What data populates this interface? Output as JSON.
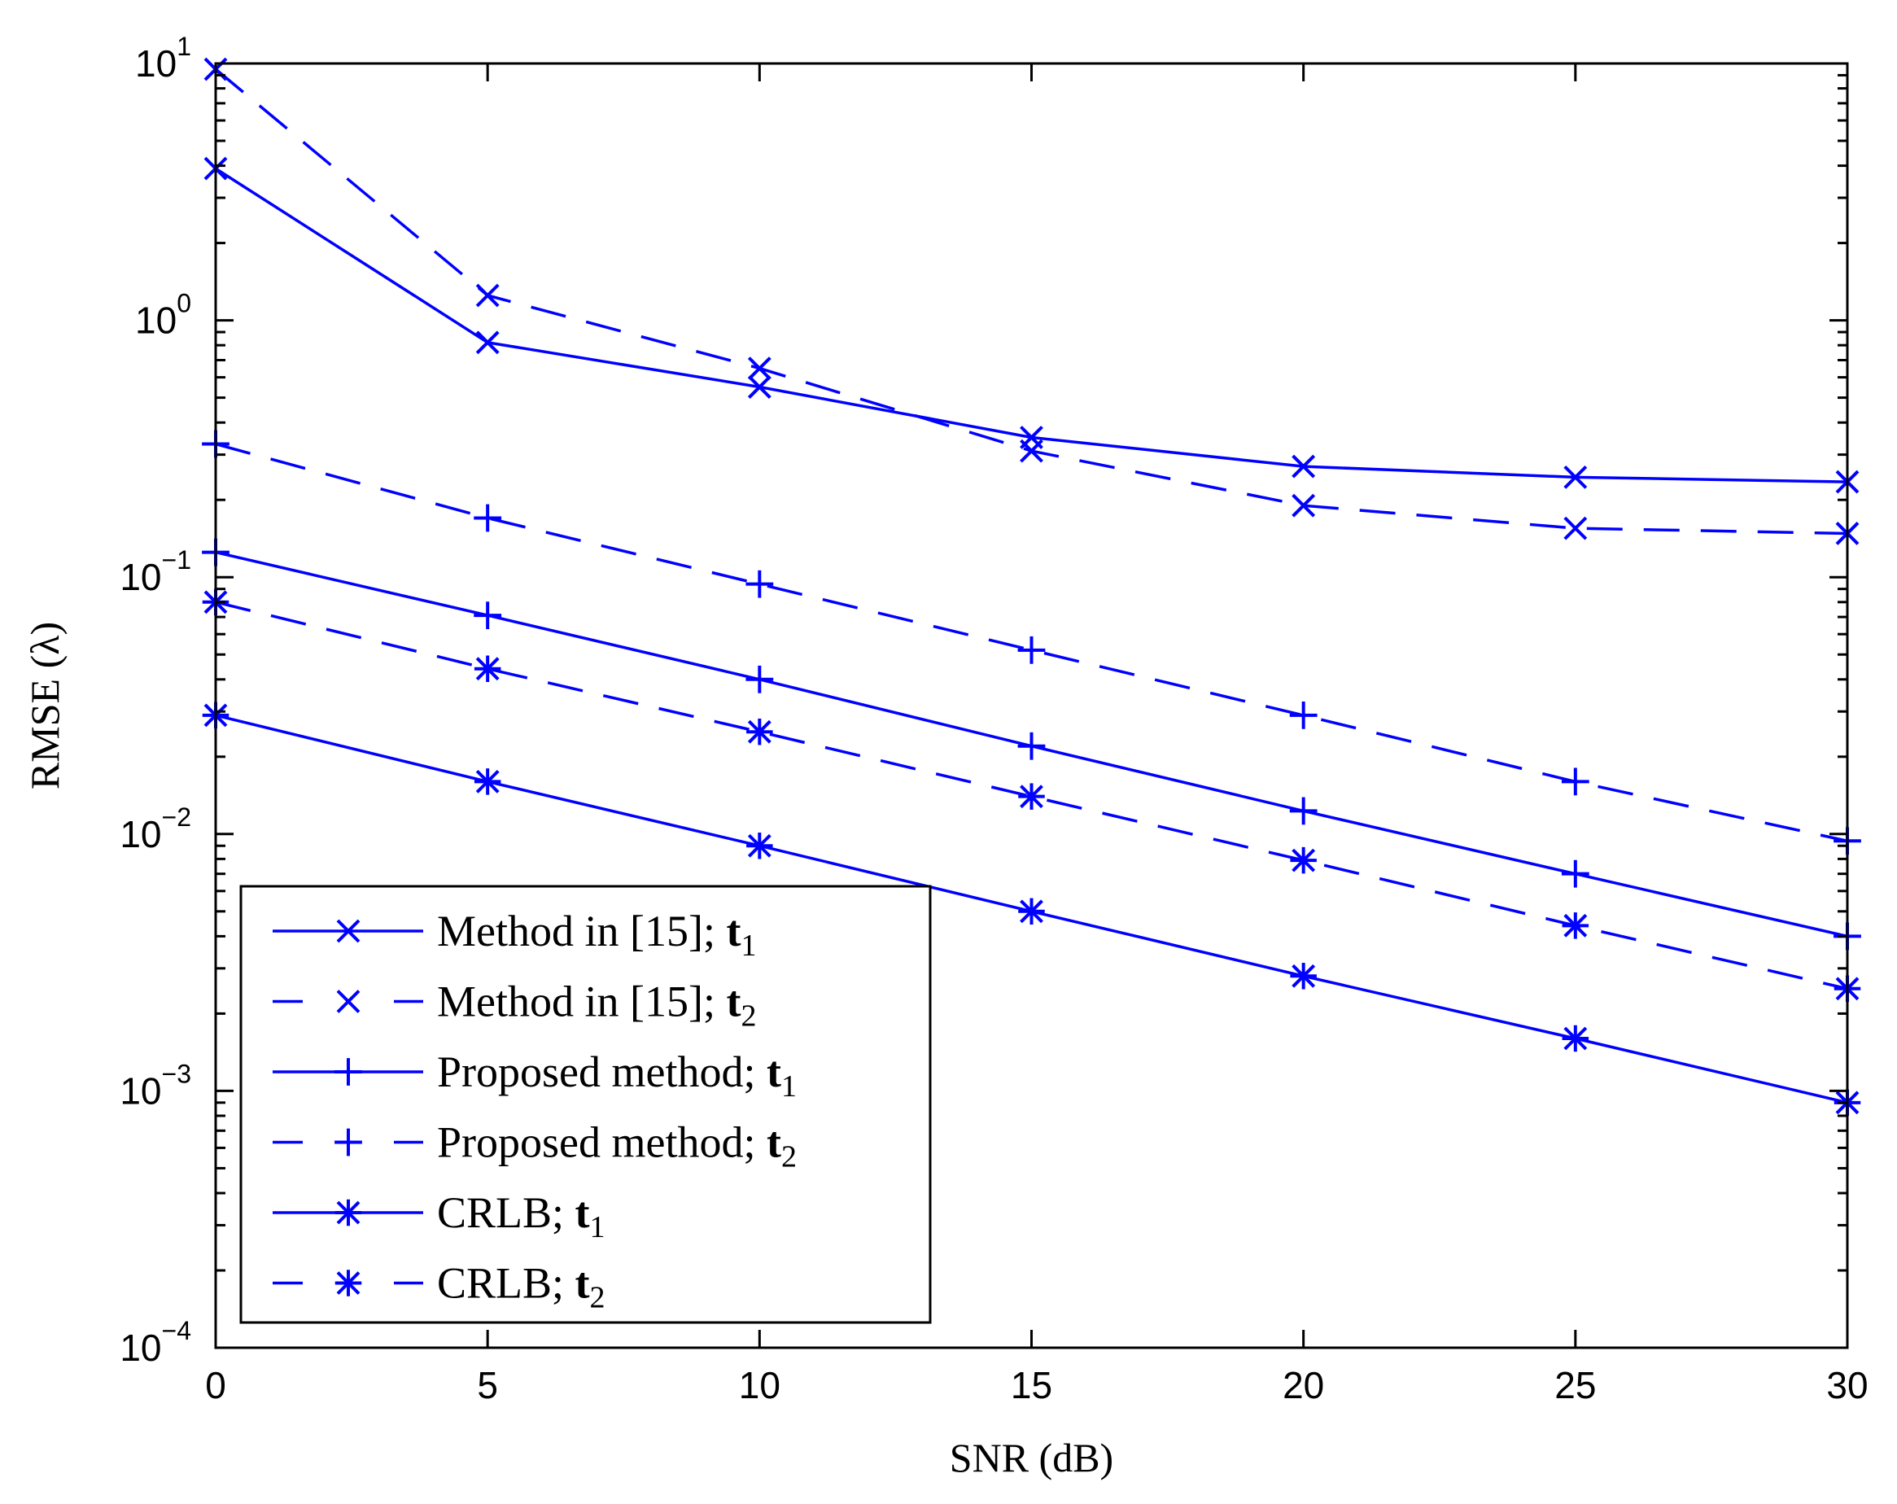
{
  "chart_data": {
    "type": "line",
    "title": "",
    "xlabel": "SNR (dB)",
    "ylabel": "RMSE (λ)",
    "xlim": [
      0,
      30
    ],
    "ylim": [
      0.0001,
      10
    ],
    "yscale": "log",
    "x_ticks": [
      "0",
      "5",
      "10",
      "15",
      "20",
      "25",
      "30"
    ],
    "y_ticks": [
      {
        "base": "10",
        "exp": "1"
      },
      {
        "base": "10",
        "exp": "0"
      },
      {
        "base": "10",
        "exp": "−1"
      },
      {
        "base": "10",
        "exp": "−2"
      },
      {
        "base": "10",
        "exp": "−3"
      },
      {
        "base": "10",
        "exp": "−4"
      }
    ],
    "x": [
      0,
      5,
      10,
      15,
      20,
      25,
      30
    ],
    "color": "#0000ff",
    "series": [
      {
        "name": "Method in [15]; t1",
        "legend_prefix": "Method in [15]; ",
        "legend_vec": "t",
        "legend_sub": "1",
        "marker": "x",
        "dash": false,
        "values": [
          3.9,
          0.82,
          0.55,
          0.35,
          0.27,
          0.245,
          0.235
        ]
      },
      {
        "name": "Method in [15]; t2",
        "legend_prefix": "Method in [15]; ",
        "legend_vec": "t",
        "legend_sub": "2",
        "marker": "x",
        "dash": true,
        "values": [
          9.5,
          1.25,
          0.65,
          0.31,
          0.19,
          0.155,
          0.148
        ]
      },
      {
        "name": "Proposed method; t1",
        "legend_prefix": "Proposed method; ",
        "legend_vec": "t",
        "legend_sub": "1",
        "marker": "plus",
        "dash": false,
        "values": [
          0.125,
          0.071,
          0.04,
          0.022,
          0.0123,
          0.007,
          0.004
        ]
      },
      {
        "name": "Proposed method; t2",
        "legend_prefix": "Proposed method; ",
        "legend_vec": "t",
        "legend_sub": "2",
        "marker": "plus",
        "dash": true,
        "values": [
          0.33,
          0.17,
          0.094,
          0.052,
          0.029,
          0.016,
          0.0094
        ]
      },
      {
        "name": "CRLB; t1",
        "legend_prefix": "CRLB; ",
        "legend_vec": "t",
        "legend_sub": "1",
        "marker": "star",
        "dash": false,
        "values": [
          0.029,
          0.016,
          0.009,
          0.005,
          0.0028,
          0.0016,
          0.0009
        ]
      },
      {
        "name": "CRLB; t2",
        "legend_prefix": "CRLB; ",
        "legend_vec": "t",
        "legend_sub": "2",
        "marker": "star",
        "dash": true,
        "values": [
          0.08,
          0.044,
          0.025,
          0.014,
          0.0079,
          0.0044,
          0.0025
        ]
      }
    ],
    "legend_position": "bottom-left",
    "grid": false
  }
}
